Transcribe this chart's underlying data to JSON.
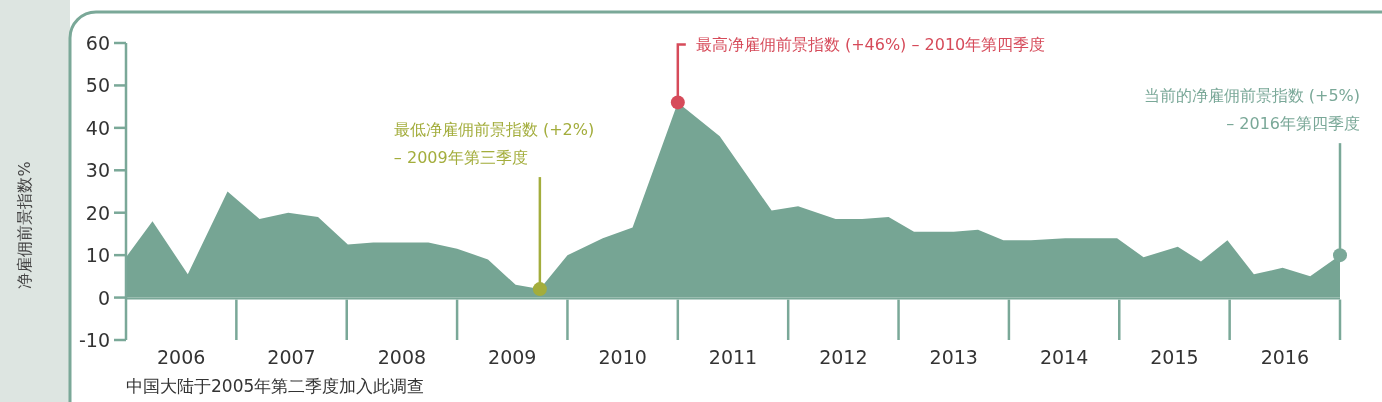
{
  "chart_data": {
    "type": "area",
    "ylabel": "净雇佣前景指数%",
    "x": [
      2006.0,
      2006.24,
      2006.56,
      2006.92,
      2007.21,
      2007.47,
      2007.74,
      2008.01,
      2008.24,
      2008.74,
      2009.0,
      2009.28,
      2009.53,
      2009.75,
      2010.0,
      2010.32,
      2010.59,
      2011.0,
      2011.38,
      2011.85,
      2012.09,
      2012.43,
      2012.67,
      2012.91,
      2013.14,
      2013.5,
      2013.72,
      2013.95,
      2014.2,
      2014.51,
      2014.98,
      2015.22,
      2015.53,
      2015.74,
      2015.98,
      2016.22,
      2016.48,
      2016.73,
      2017.0
    ],
    "series": [
      {
        "color": "#76a594",
        "values": [
          9.5,
          18,
          5.5,
          25,
          18.5,
          20,
          19,
          12.5,
          13,
          13,
          11.5,
          9,
          3,
          2,
          10,
          14,
          16.5,
          46,
          38,
          20.5,
          21.5,
          18.5,
          18.5,
          19,
          15.5,
          15.5,
          16,
          13.5,
          13.5,
          14,
          14,
          9.5,
          12,
          8.5,
          13.5,
          5.5,
          7,
          5,
          10
        ]
      }
    ],
    "xlim": [
      2006,
      2017
    ],
    "xticks": [
      {
        "value": 2006.5,
        "label": "2006"
      },
      {
        "value": 2007.5,
        "label": "2007"
      },
      {
        "value": 2008.5,
        "label": "2008"
      },
      {
        "value": 2009.5,
        "label": "2009"
      },
      {
        "value": 2010.5,
        "label": "2010"
      },
      {
        "value": 2011.5,
        "label": "2011"
      },
      {
        "value": 2012.5,
        "label": "2012"
      },
      {
        "value": 2013.5,
        "label": "2013"
      },
      {
        "value": 2014.5,
        "label": "2014"
      },
      {
        "value": 2015.5,
        "label": "2015"
      },
      {
        "value": 2016.5,
        "label": "2016"
      }
    ],
    "ylim": [
      -10,
      60
    ],
    "yticks": [
      -10,
      0,
      10,
      20,
      30,
      40,
      50,
      60
    ],
    "annotations": [
      {
        "text": "最低净雇佣前景指数 (+2%)\n– 2009年第三季度",
        "x": 2009.75,
        "y": 2
      },
      {
        "text": "最高净雇佣前景指数 (+46%) – 2010年第四季度",
        "x": 2011.0,
        "y": 46
      },
      {
        "text": "当前的净雇佣前景指数 (+5%)\n– 2016年第四季度",
        "x": 2017.0,
        "y": 10
      },
      "中国大陆于2005年第二季度加入此调查"
    ]
  }
}
